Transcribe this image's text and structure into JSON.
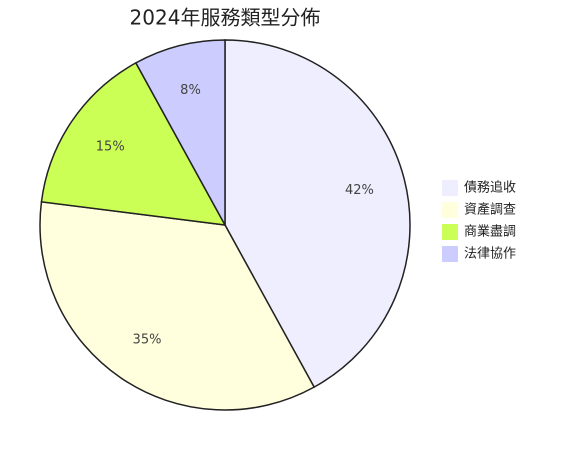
{
  "chart_data": {
    "type": "pie",
    "title": "2024年服務類型分佈",
    "categories": [
      "債務追收",
      "資產調查",
      "商業盡調",
      "法律協作"
    ],
    "values": [
      42,
      35,
      15,
      8
    ],
    "value_labels": [
      "42%",
      "35%",
      "15%",
      "8%"
    ],
    "colors": [
      "#eeeeff",
      "#ffffdd",
      "#ccff55",
      "#ccccff"
    ],
    "legend": "right"
  }
}
